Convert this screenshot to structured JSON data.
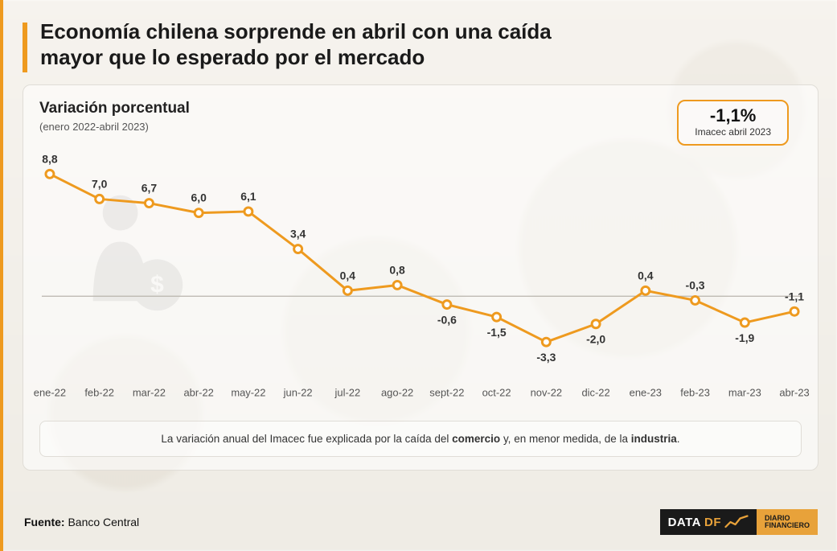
{
  "colors": {
    "accent": "#ee9a1f",
    "line": "#ee9a1f",
    "marker_fill": "#ffffff",
    "zero_axis": "#b9b5ac",
    "card_border": "#e0ddd7",
    "text_dark": "#1a1a1a",
    "text_muted": "#555555",
    "bg": "#f4f1ea"
  },
  "title": "Economía chilena sorprende en abril con una caída mayor que lo esperado por el mercado",
  "chart": {
    "type": "line",
    "title": "Variación porcentual",
    "range_label": "(enero 2022-abril 2023)",
    "callout": {
      "value": "-1,1%",
      "sublabel": "Imacec abril 2023"
    },
    "y_domain": [
      -5,
      10
    ],
    "zero_line": 0,
    "line_width": 3,
    "marker_radius": 5,
    "marker_stroke_width": 3,
    "title_fontsize": 19,
    "axis_fontsize": 13,
    "value_fontsize": 14,
    "categories": [
      "ene-22",
      "feb-22",
      "mar-22",
      "abr-22",
      "may-22",
      "jun-22",
      "jul-22",
      "ago-22",
      "sept-22",
      "oct-22",
      "nov-22",
      "dic-22",
      "ene-23",
      "feb-23",
      "mar-23",
      "abr-23"
    ],
    "values": [
      8.8,
      7.0,
      6.7,
      6.0,
      6.1,
      3.4,
      0.4,
      0.8,
      -0.6,
      -1.5,
      -3.3,
      -2.0,
      0.4,
      -0.3,
      -1.9,
      -1.1
    ],
    "value_labels": [
      "8,8",
      "7,0",
      "6,7",
      "6,0",
      "6,1",
      "3,4",
      "0,4",
      "0,8",
      "-0,6",
      "-1,5",
      "-3,3",
      "-2,0",
      "0,4",
      "-0,3",
      "-1,9",
      "-1,1"
    ],
    "label_position": [
      "above",
      "above",
      "above",
      "above",
      "above",
      "above",
      "above",
      "above",
      "below",
      "below",
      "below",
      "below",
      "above",
      "above",
      "below",
      "above"
    ]
  },
  "explain": {
    "prefix": "La variación anual del Imacec fue explicada por la caída del ",
    "bold1": "comercio",
    "mid": " y, en menor medida, de la ",
    "bold2": "industria",
    "suffix": "."
  },
  "source": {
    "label": "Fuente:",
    "value": "Banco Central"
  },
  "brand": {
    "data": "DATA",
    "df": "DF",
    "line1": "DIARIO",
    "line2": "FINANCIERO"
  }
}
